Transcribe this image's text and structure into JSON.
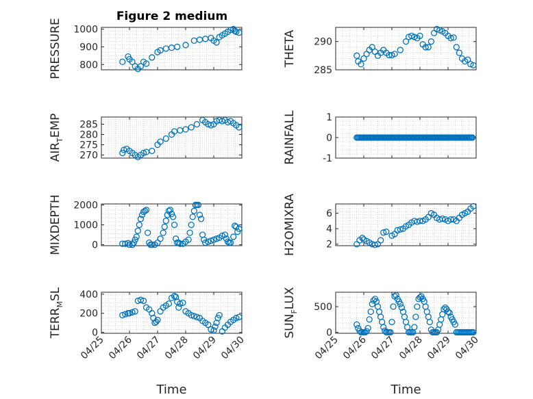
{
  "figure": {
    "title": "Figure 2 medium",
    "colors": {
      "marker": "#0072BD",
      "axes": "#262626",
      "grid": "#c8c8c8",
      "background": "#ffffff"
    }
  },
  "chart_data": [
    {
      "type": "scatter",
      "id": "pressure",
      "title": "Figure 2 medium",
      "ylabel": {
        "main": "PRESSURE",
        "sub": "",
        "tail": ""
      },
      "xlabel": "",
      "show_x_ticks": false,
      "xlim": [
        "04/25",
        "04/30"
      ],
      "xticks": [
        "04/25",
        "04/26",
        "04/27",
        "04/28",
        "04/29",
        "04/30"
      ],
      "ylim": [
        770,
        1010
      ],
      "yticks": [
        800,
        900,
        1000
      ],
      "ytick_labels": [
        "800",
        "900",
        "1000"
      ],
      "grid": true,
      "marker": "circle-open",
      "series": [
        {
          "x": [
            0.75,
            0.95,
            1.0,
            1.1,
            1.2,
            1.3,
            1.4,
            1.5,
            1.6,
            1.8,
            2.0,
            2.1,
            2.3,
            2.5,
            2.7,
            3.0,
            3.3,
            3.5,
            3.7,
            3.9,
            4.0,
            4.1,
            4.2,
            4.3,
            4.4,
            4.5,
            4.6,
            4.7,
            4.75,
            4.8,
            4.9
          ],
          "y": [
            815,
            845,
            830,
            815,
            790,
            775,
            790,
            815,
            805,
            840,
            870,
            880,
            890,
            895,
            900,
            910,
            935,
            940,
            945,
            950,
            935,
            925,
            955,
            965,
            975,
            985,
            995,
            1000,
            990,
            985,
            980
          ]
        }
      ]
    },
    {
      "type": "scatter",
      "id": "theta",
      "ylabel": {
        "main": "THETA",
        "sub": "",
        "tail": ""
      },
      "xlabel": "",
      "show_x_ticks": false,
      "xlim": [
        "04/25",
        "04/30"
      ],
      "xticks": [
        "04/25",
        "04/26",
        "04/27",
        "04/28",
        "04/29",
        "04/30"
      ],
      "ylim": [
        285,
        292.5
      ],
      "yticks": [
        285,
        290
      ],
      "ytick_labels": [
        "285",
        "290"
      ],
      "grid": true,
      "marker": "circle-open",
      "series": [
        {
          "x": [
            0.75,
            0.8,
            0.9,
            1.0,
            1.1,
            1.2,
            1.3,
            1.4,
            1.5,
            1.6,
            1.7,
            1.8,
            1.9,
            2.0,
            2.1,
            2.3,
            2.5,
            2.6,
            2.7,
            2.8,
            2.9,
            3.0,
            3.1,
            3.2,
            3.3,
            3.4,
            3.5,
            3.6,
            3.7,
            3.8,
            3.9,
            4.0,
            4.1,
            4.2,
            4.3,
            4.4,
            4.5,
            4.6,
            4.7,
            4.8,
            4.9
          ],
          "y": [
            287.5,
            286.5,
            286,
            287,
            287.8,
            288.5,
            289,
            288.2,
            287.5,
            288,
            288.5,
            288,
            287.6,
            287.6,
            287.8,
            288.5,
            290,
            290.8,
            291,
            290.8,
            290.6,
            291,
            289.5,
            289,
            289,
            290,
            291.5,
            292.2,
            292,
            291.8,
            291.5,
            291,
            290.6,
            290.7,
            289,
            288,
            287,
            286.5,
            286.8,
            286,
            285.8
          ]
        }
      ]
    },
    {
      "type": "scatter",
      "id": "air_temp",
      "ylabel": {
        "main": "AIR",
        "sub": "T",
        "tail": "EMP"
      },
      "xlabel": "",
      "show_x_ticks": false,
      "xlim": [
        "04/25",
        "04/30"
      ],
      "xticks": [
        "04/25",
        "04/26",
        "04/27",
        "04/28",
        "04/29",
        "04/30"
      ],
      "ylim": [
        268.5,
        288.5
      ],
      "yticks": [
        270,
        275,
        280,
        285
      ],
      "ytick_labels": [
        "270",
        "275",
        "280",
        "285"
      ],
      "grid": true,
      "marker": "circle-open",
      "series": [
        {
          "x": [
            0.75,
            0.8,
            0.9,
            1.0,
            1.1,
            1.2,
            1.3,
            1.4,
            1.5,
            1.6,
            1.8,
            2.0,
            2.1,
            2.3,
            2.5,
            2.6,
            2.8,
            3.0,
            3.2,
            3.4,
            3.6,
            3.7,
            3.8,
            3.9,
            4.0,
            4.1,
            4.2,
            4.3,
            4.4,
            4.5,
            4.6,
            4.7,
            4.8,
            4.9
          ],
          "y": [
            271,
            272.5,
            273,
            272,
            271,
            270,
            269,
            270,
            271,
            271.5,
            272,
            275,
            276.5,
            278,
            280,
            281.5,
            282,
            282.5,
            283.5,
            285,
            287,
            286,
            285,
            284.5,
            285,
            286.5,
            287,
            286.5,
            287,
            286,
            286.5,
            285.5,
            284.5,
            283.5
          ]
        }
      ]
    },
    {
      "type": "scatter",
      "id": "rainfall",
      "ylabel": {
        "main": "RAINFALL",
        "sub": "",
        "tail": ""
      },
      "xlabel": "",
      "show_x_ticks": false,
      "xlim": [
        "04/25",
        "04/30"
      ],
      "xticks": [
        "04/25",
        "04/26",
        "04/27",
        "04/28",
        "04/29",
        "04/30"
      ],
      "ylim": [
        -1,
        1
      ],
      "yticks": [
        -1,
        0,
        1
      ],
      "ytick_labels": [
        "-1",
        "0",
        "1"
      ],
      "grid": true,
      "marker": "circle-open",
      "series": [
        {
          "x_range": [
            0.75,
            4.9
          ],
          "y_const": 0
        }
      ]
    },
    {
      "type": "scatter",
      "id": "mixdepth",
      "ylabel": {
        "main": "MIXDEPTH",
        "sub": "",
        "tail": ""
      },
      "xlabel": "",
      "show_x_ticks": false,
      "xlim": [
        "04/25",
        "04/30"
      ],
      "xticks": [
        "04/25",
        "04/26",
        "04/27",
        "04/28",
        "04/29",
        "04/30"
      ],
      "ylim": [
        -50,
        2050
      ],
      "yticks": [
        0,
        1000,
        2000
      ],
      "ytick_labels": [
        "0",
        "1000",
        "2000"
      ],
      "grid": true,
      "marker": "circle-open",
      "series": [
        {
          "x": [
            0.75,
            0.85,
            0.95,
            1.0,
            1.1,
            1.15,
            1.2,
            1.25,
            1.3,
            1.35,
            1.4,
            1.45,
            1.5,
            1.55,
            1.6,
            1.65,
            1.7,
            1.75,
            1.8,
            1.9,
            2.0,
            2.1,
            2.2,
            2.25,
            2.3,
            2.35,
            2.4,
            2.45,
            2.5,
            2.55,
            2.6,
            2.65,
            2.7,
            2.75,
            2.8,
            2.9,
            3.0,
            3.1,
            3.15,
            3.2,
            3.25,
            3.3,
            3.35,
            3.4,
            3.45,
            3.5,
            3.55,
            3.6,
            3.65,
            3.7,
            3.8,
            3.9,
            4.0,
            4.1,
            4.2,
            4.3,
            4.4,
            4.45,
            4.5,
            4.55,
            4.6,
            4.7,
            4.75,
            4.8,
            4.85,
            4.9
          ],
          "y": [
            50,
            50,
            80,
            0,
            0,
            100,
            250,
            400,
            700,
            1000,
            1300,
            1500,
            1650,
            1700,
            1750,
            600,
            100,
            0,
            0,
            0,
            100,
            300,
            600,
            900,
            1200,
            1500,
            1700,
            1750,
            1550,
            1400,
            1000,
            300,
            100,
            100,
            50,
            50,
            150,
            250,
            600,
            1000,
            1400,
            1700,
            2000,
            2000,
            2000,
            1500,
            1300,
            500,
            250,
            100,
            150,
            200,
            250,
            300,
            350,
            450,
            500,
            300,
            150,
            100,
            100,
            400,
            950,
            900,
            650,
            800
          ]
        }
      ]
    },
    {
      "type": "scatter",
      "id": "h2omixra",
      "ylabel": {
        "main": "H2OMIXRA",
        "sub": "",
        "tail": ""
      },
      "xlabel": "",
      "show_x_ticks": false,
      "xlim": [
        "04/25",
        "04/30"
      ],
      "xticks": [
        "04/25",
        "04/26",
        "04/27",
        "04/28",
        "04/29",
        "04/30"
      ],
      "ylim": [
        1.8,
        7.2
      ],
      "yticks": [
        2,
        4,
        6
      ],
      "ytick_labels": [
        "2",
        "4",
        "6"
      ],
      "grid": true,
      "marker": "circle-open",
      "series": [
        {
          "x": [
            0.75,
            0.85,
            0.95,
            1.0,
            1.1,
            1.2,
            1.3,
            1.4,
            1.5,
            1.6,
            1.7,
            1.8,
            2.0,
            2.1,
            2.2,
            2.3,
            2.4,
            2.5,
            2.6,
            2.7,
            2.8,
            2.9,
            3.0,
            3.1,
            3.2,
            3.3,
            3.4,
            3.5,
            3.6,
            3.7,
            3.8,
            3.9,
            4.0,
            4.1,
            4.2,
            4.3,
            4.4,
            4.5,
            4.6,
            4.7,
            4.8,
            4.9
          ],
          "y": [
            2.0,
            2.5,
            2.8,
            2.6,
            2.4,
            2.2,
            2.0,
            1.9,
            2.0,
            2.5,
            3.5,
            3.6,
            3.1,
            3.3,
            3.8,
            3.9,
            4.0,
            4.3,
            4.5,
            4.8,
            5.0,
            4.9,
            5.0,
            5.0,
            5.2,
            5.5,
            6.0,
            5.8,
            5.4,
            5.2,
            5.3,
            5.2,
            5.0,
            5.2,
            5.2,
            5.0,
            5.4,
            5.8,
            6.0,
            6.2,
            6.6,
            6.9
          ]
        }
      ]
    },
    {
      "type": "scatter",
      "id": "terr_msl",
      "ylabel": {
        "main": "TERR",
        "sub": "M",
        "tail": "SL"
      },
      "xlabel": "Time",
      "show_x_ticks": true,
      "xlim": [
        "04/25",
        "04/30"
      ],
      "xticks": [
        "04/25",
        "04/26",
        "04/27",
        "04/28",
        "04/29",
        "04/30"
      ],
      "ylim": [
        -10,
        420
      ],
      "yticks": [
        0,
        200,
        400
      ],
      "ytick_labels": [
        "0",
        "200",
        "400"
      ],
      "grid": true,
      "marker": "circle-open",
      "series": [
        {
          "x": [
            0.75,
            0.85,
            0.95,
            1.0,
            1.1,
            1.2,
            1.3,
            1.4,
            1.5,
            1.6,
            1.7,
            1.8,
            1.85,
            1.9,
            1.95,
            2.0,
            2.1,
            2.2,
            2.3,
            2.4,
            2.5,
            2.6,
            2.65,
            2.7,
            2.75,
            2.8,
            2.9,
            3.0,
            3.1,
            3.2,
            3.3,
            3.4,
            3.5,
            3.6,
            3.7,
            3.8,
            3.9,
            4.0,
            4.05,
            4.1,
            4.15,
            4.2,
            4.3,
            4.4,
            4.5,
            4.6,
            4.7,
            4.8,
            4.9
          ],
          "y": [
            180,
            190,
            200,
            200,
            210,
            220,
            330,
            340,
            330,
            260,
            240,
            200,
            150,
            100,
            110,
            130,
            220,
            260,
            280,
            300,
            360,
            380,
            370,
            320,
            260,
            300,
            310,
            220,
            200,
            180,
            170,
            160,
            150,
            120,
            100,
            80,
            30,
            20,
            60,
            100,
            150,
            180,
            10,
            50,
            80,
            110,
            130,
            150,
            160
          ]
        }
      ]
    },
    {
      "type": "scatter",
      "id": "sun_flux",
      "ylabel": {
        "main": "SUN",
        "sub": "F",
        "tail": "LUX"
      },
      "xlabel": "Time",
      "show_x_ticks": true,
      "xlim": [
        "04/25",
        "04/30"
      ],
      "xticks": [
        "04/25",
        "04/26",
        "04/27",
        "04/28",
        "04/29",
        "04/30"
      ],
      "ylim": [
        -20,
        780
      ],
      "yticks": [
        0,
        500
      ],
      "ytick_labels": [
        "0",
        "500"
      ],
      "grid": true,
      "marker": "circle-open",
      "series": [
        {
          "x": [
            0.75,
            0.8,
            0.85,
            0.9,
            0.95,
            1.0,
            1.05,
            1.1,
            1.15,
            1.2,
            1.25,
            1.3,
            1.35,
            1.4,
            1.45,
            1.5,
            1.55,
            1.6,
            1.65,
            1.7,
            1.75,
            1.8,
            1.85,
            1.9,
            1.95,
            2.0,
            2.05,
            2.1,
            2.15,
            2.2,
            2.25,
            2.3,
            2.35,
            2.4,
            2.45,
            2.5,
            2.55,
            2.6,
            2.65,
            2.7,
            2.75,
            2.8,
            2.85,
            2.9,
            2.95,
            3.0,
            3.05,
            3.1,
            3.15,
            3.2,
            3.25,
            3.3,
            3.35,
            3.4,
            3.45,
            3.5,
            3.55,
            3.6,
            3.65,
            3.7,
            3.75,
            3.8,
            3.85,
            3.9,
            3.95,
            4.0,
            4.05,
            4.1,
            4.15,
            4.2,
            4.25,
            4.3,
            4.35,
            4.4,
            4.45,
            4.5,
            4.55,
            4.6,
            4.65,
            4.7,
            4.75,
            4.8,
            4.85,
            4.9
          ],
          "y": [
            150,
            80,
            30,
            0,
            0,
            0,
            0,
            20,
            80,
            250,
            400,
            550,
            620,
            650,
            600,
            500,
            400,
            300,
            200,
            100,
            30,
            0,
            0,
            0,
            0,
            200,
            500,
            700,
            720,
            650,
            600,
            550,
            480,
            400,
            300,
            200,
            100,
            0,
            0,
            0,
            0,
            100,
            300,
            500,
            650,
            680,
            700,
            650,
            600,
            500,
            400,
            300,
            200,
            50,
            0,
            0,
            0,
            0,
            50,
            150,
            250,
            350,
            450,
            480,
            450,
            400,
            380,
            300,
            250,
            200,
            150,
            0,
            0,
            0,
            0,
            0,
            0,
            0,
            0,
            0,
            0,
            0,
            0,
            0
          ]
        }
      ]
    }
  ]
}
